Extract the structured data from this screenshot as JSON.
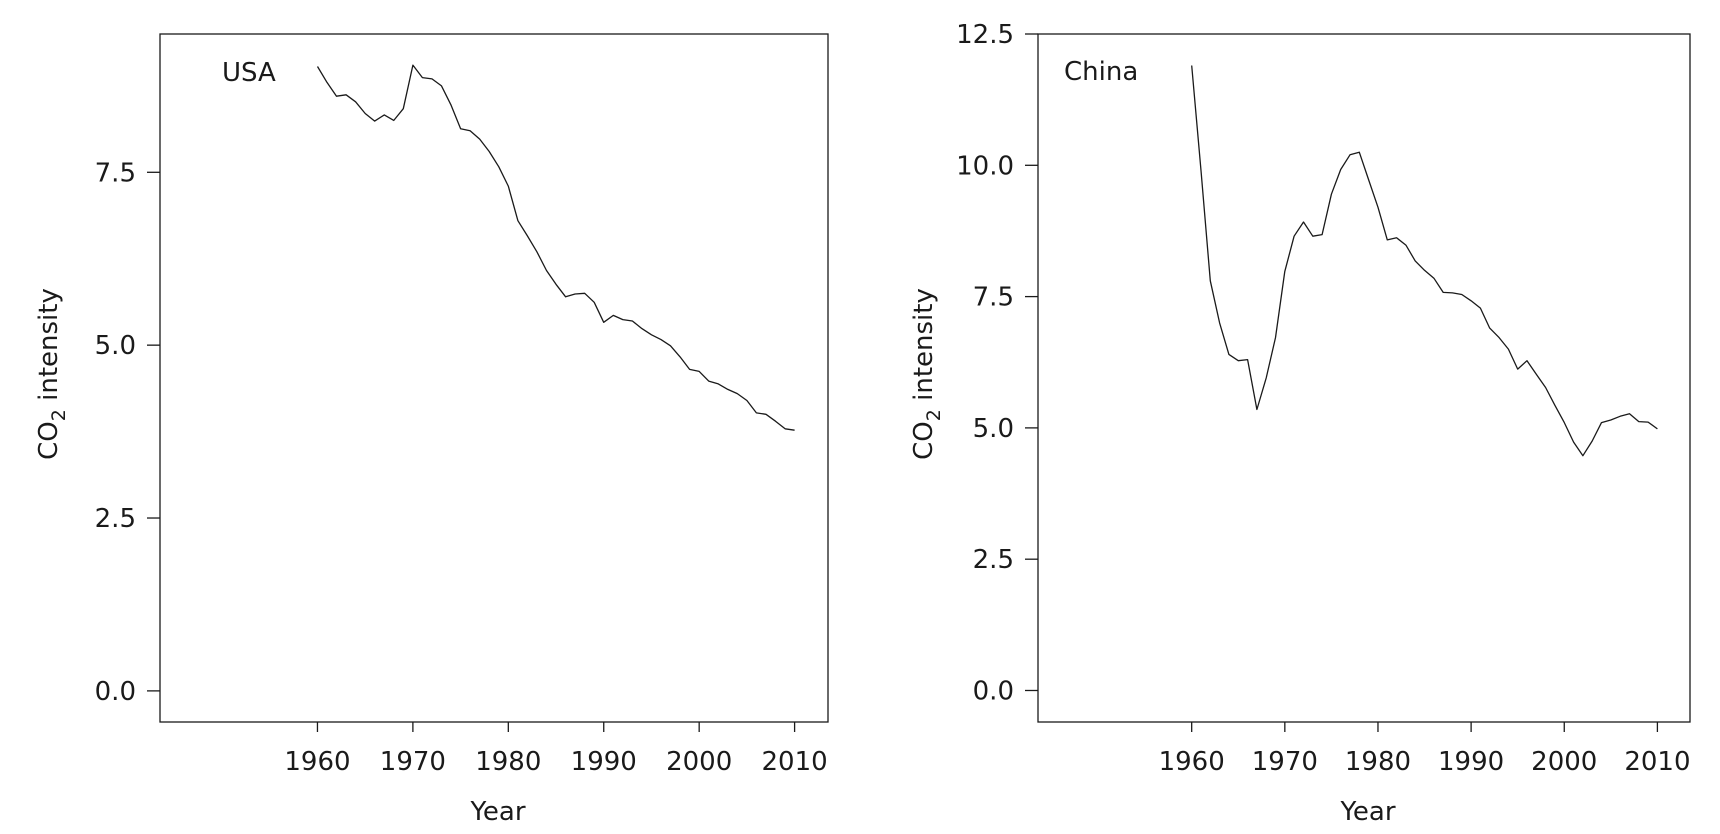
{
  "chart_data": [
    {
      "type": "line",
      "panel_label": "USA",
      "xlabel": "Year",
      "ylabel_main": "CO",
      "ylabel_sub": "2",
      "ylabel_rest": " intensity",
      "xlim": [
        1943.5,
        2013.5
      ],
      "ylim": [
        -0.45,
        9.5
      ],
      "xticks": [
        1960,
        1970,
        1980,
        1990,
        2000,
        2010
      ],
      "xtick_labels": [
        "1960",
        "1970",
        "1980",
        "1990",
        "2000",
        "2010"
      ],
      "yticks": [
        0,
        2.5,
        5,
        7.5
      ],
      "ytick_labels": [
        "0.0",
        "2.5",
        "5.0",
        "7.5"
      ],
      "series": [
        {
          "x": [
            1960,
            1961,
            1962,
            1963,
            1964,
            1965,
            1966,
            1967,
            1968,
            1969,
            1970,
            1971,
            1972,
            1973,
            1974,
            1975,
            1976,
            1977,
            1978,
            1979,
            1980,
            1981,
            1982,
            1983,
            1984,
            1985,
            1986,
            1987,
            1988,
            1989,
            1990,
            1991,
            1992,
            1993,
            1994,
            1995,
            1996,
            1997,
            1998,
            1999,
            2000,
            2001,
            2002,
            2003,
            2004,
            2005,
            2006,
            2007,
            2008,
            2009,
            2010
          ],
          "y": [
            9.03,
            8.8,
            8.6,
            8.62,
            8.52,
            8.35,
            8.24,
            8.33,
            8.25,
            8.42,
            9.05,
            8.87,
            8.85,
            8.75,
            8.47,
            8.13,
            8.1,
            7.98,
            7.8,
            7.58,
            7.3,
            6.8,
            6.58,
            6.35,
            6.08,
            5.88,
            5.7,
            5.74,
            5.75,
            5.62,
            5.33,
            5.43,
            5.37,
            5.35,
            5.24,
            5.15,
            5.08,
            4.99,
            4.83,
            4.65,
            4.62,
            4.48,
            4.44,
            4.36,
            4.3,
            4.2,
            4.02,
            4.0,
            3.9,
            3.79,
            3.77
          ]
        }
      ]
    },
    {
      "type": "line",
      "panel_label": "China",
      "xlabel": "Year",
      "ylabel_main": "CO",
      "ylabel_sub": "2",
      "ylabel_rest": " intensity",
      "xlim": [
        1943.5,
        2013.5
      ],
      "ylim": [
        -0.6,
        12.5
      ],
      "xticks": [
        1960,
        1970,
        1980,
        1990,
        2000,
        2010
      ],
      "xtick_labels": [
        "1960",
        "1970",
        "1980",
        "1990",
        "2000",
        "2010"
      ],
      "yticks": [
        0,
        2.5,
        5,
        7.5,
        10,
        12.5
      ],
      "ytick_labels": [
        "0.0",
        "2.5",
        "5.0",
        "7.5",
        "10.0",
        "12.5"
      ],
      "series": [
        {
          "x": [
            1960,
            1961,
            1962,
            1963,
            1964,
            1965,
            1966,
            1967,
            1968,
            1969,
            1970,
            1971,
            1972,
            1973,
            1974,
            1975,
            1976,
            1977,
            1978,
            1979,
            1980,
            1981,
            1982,
            1983,
            1984,
            1985,
            1986,
            1987,
            1988,
            1989,
            1990,
            1991,
            1992,
            1993,
            1994,
            1995,
            1996,
            1997,
            1998,
            1999,
            2000,
            2001,
            2002,
            2003,
            2004,
            2005,
            2006,
            2007,
            2008,
            2009,
            2010
          ],
          "y": [
            11.9,
            9.9,
            7.8,
            7.0,
            6.4,
            6.28,
            6.3,
            5.35,
            5.95,
            6.72,
            7.98,
            8.65,
            8.92,
            8.65,
            8.68,
            9.45,
            9.92,
            10.2,
            10.25,
            9.72,
            9.2,
            8.58,
            8.62,
            8.48,
            8.18,
            8.0,
            7.85,
            7.58,
            7.57,
            7.54,
            7.42,
            7.28,
            6.9,
            6.72,
            6.5,
            6.12,
            6.28,
            6.02,
            5.77,
            5.43,
            5.1,
            4.73,
            4.47,
            4.75,
            5.1,
            5.15,
            5.22,
            5.27,
            5.12,
            5.11,
            4.98
          ]
        }
      ]
    }
  ]
}
